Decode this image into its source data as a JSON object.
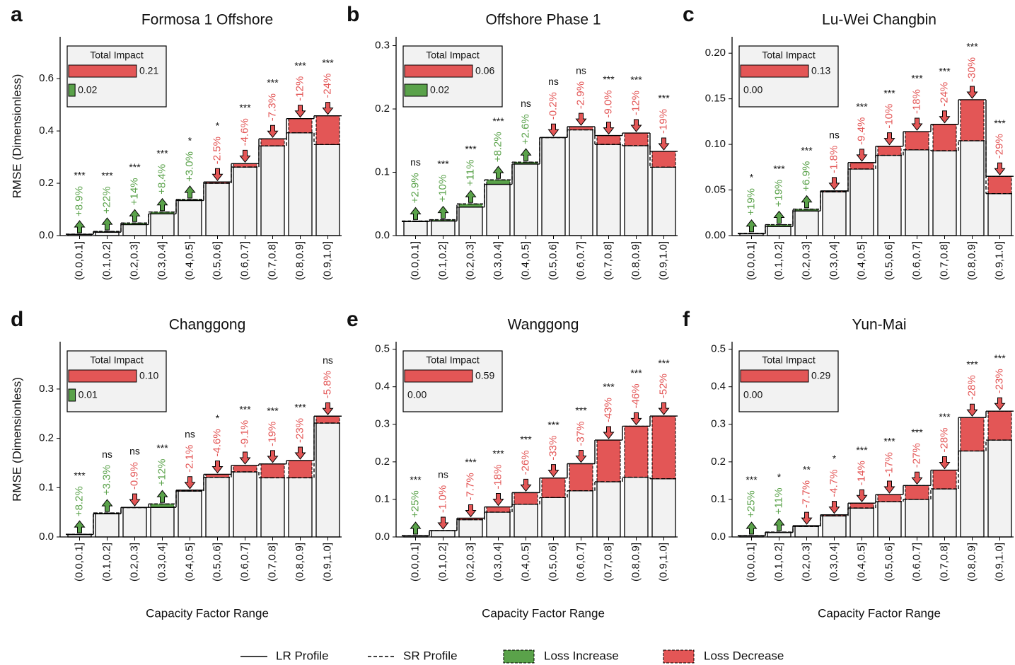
{
  "chart_data": [
    {
      "type": "step-bar",
      "panel_label": "a",
      "title": "Formosa 1 Offshore",
      "ylabel": "RMSE (Dimensionless)",
      "categories": [
        "(0.0,0.1]",
        "(0.1,0.2]",
        "(0.2,0.3]",
        "(0.3,0.4]",
        "(0.4,0.5]",
        "(0.5,0.6]",
        "(0.6,0.7]",
        "(0.7,0.8]",
        "(0.8,0.9]",
        "(0.9,1.0]"
      ],
      "series": [
        {
          "name": "LR Profile",
          "values": [
            0.005,
            0.013,
            0.042,
            0.083,
            0.134,
            0.205,
            0.275,
            0.37,
            0.447,
            0.458
          ]
        },
        {
          "name": "SR Profile",
          "values": [
            0.0055,
            0.016,
            0.048,
            0.09,
            0.138,
            0.2,
            0.262,
            0.343,
            0.393,
            0.348
          ]
        }
      ],
      "change_labels": [
        "+8.9%",
        "+22%",
        "+14%",
        "+8.4%",
        "+3.0%",
        "-2.5%",
        "-4.6%",
        "-7.3%",
        "-12%",
        "-24%"
      ],
      "significance": [
        "***",
        "***",
        "***",
        "***",
        "*",
        "*",
        "***",
        "***",
        "***",
        "***"
      ],
      "ylim": [
        0,
        0.76
      ],
      "yticks": [
        {
          "value": 0,
          "label": "0.0"
        },
        {
          "value": 0.2,
          "label": "0.2"
        },
        {
          "value": 0.4,
          "label": "0.4"
        },
        {
          "value": 0.6,
          "label": "0.6"
        }
      ],
      "inset": {
        "title": "Total Impact",
        "values": [
          0.21,
          0.02
        ],
        "value_labels": [
          "0.21",
          "0.02"
        ]
      }
    },
    {
      "type": "step-bar",
      "panel_label": "b",
      "title": "Offshore Phase 1",
      "categories": [
        "(0.0,0.1]",
        "(0.1,0.2]",
        "(0.2,0.3]",
        "(0.3,0.4]",
        "(0.4,0.5]",
        "(0.5,0.6]",
        "(0.6,0.7]",
        "(0.7,0.8]",
        "(0.8,0.9]",
        "(0.9,1.0]"
      ],
      "series": [
        {
          "name": "LR Profile",
          "values": [
            0.022,
            0.023,
            0.045,
            0.081,
            0.113,
            0.155,
            0.172,
            0.158,
            0.162,
            0.133
          ]
        },
        {
          "name": "SR Profile",
          "values": [
            0.023,
            0.025,
            0.05,
            0.088,
            0.116,
            0.1547,
            0.167,
            0.144,
            0.142,
            0.108
          ]
        }
      ],
      "change_labels": [
        "+2.9%",
        "+10%",
        "+11%",
        "+8.2%",
        "+2.6%",
        "-0.2%",
        "-2.9%",
        "-9.0%",
        "-12%",
        "-19%"
      ],
      "significance": [
        "ns",
        "***",
        "***",
        "***",
        "ns",
        "ns",
        "ns",
        "***",
        "***",
        "***"
      ],
      "ylim": [
        0,
        0.314
      ],
      "yticks": [
        {
          "value": 0,
          "label": "0.0"
        },
        {
          "value": 0.1,
          "label": "0.1"
        },
        {
          "value": 0.2,
          "label": "0.2"
        },
        {
          "value": 0.3,
          "label": "0.3"
        }
      ],
      "inset": {
        "title": "Total Impact",
        "values": [
          0.06,
          0.02
        ],
        "value_labels": [
          "0.06",
          "0.02"
        ]
      }
    },
    {
      "type": "step-bar",
      "panel_label": "c",
      "title": "Lu-Wei Changbin",
      "categories": [
        "(0.0,0.1]",
        "(0.1,0.2]",
        "(0.2,0.3]",
        "(0.3,0.4]",
        "(0.4,0.5]",
        "(0.5,0.6]",
        "(0.6,0.7]",
        "(0.7,0.8]",
        "(0.8,0.9]",
        "(0.9,1.0]"
      ],
      "series": [
        {
          "name": "LR Profile",
          "values": [
            0.002,
            0.01,
            0.027,
            0.049,
            0.08,
            0.098,
            0.114,
            0.122,
            0.149,
            0.065
          ]
        },
        {
          "name": "SR Profile",
          "values": [
            0.0025,
            0.012,
            0.029,
            0.048,
            0.073,
            0.088,
            0.094,
            0.093,
            0.104,
            0.046
          ]
        }
      ],
      "change_labels": [
        "+19%",
        "+19%",
        "+6.9%",
        "-1.8%",
        "-9.4%",
        "-10%",
        "-18%",
        "-24%",
        "-30%",
        "-29%"
      ],
      "significance": [
        "*",
        "***",
        "***",
        "ns",
        "***",
        "***",
        "***",
        "***",
        "***",
        "***"
      ],
      "ylim": [
        0,
        0.218
      ],
      "yticks": [
        {
          "value": 0,
          "label": "0.00"
        },
        {
          "value": 0.05,
          "label": "0.05"
        },
        {
          "value": 0.1,
          "label": "0.10"
        },
        {
          "value": 0.15,
          "label": "0.15"
        },
        {
          "value": 0.2,
          "label": "0.20"
        }
      ],
      "inset": {
        "title": "Total Impact",
        "values": [
          0.13,
          0
        ],
        "value_labels": [
          "0.13",
          "0.00"
        ]
      }
    },
    {
      "type": "step-bar",
      "panel_label": "d",
      "title": "Changgong",
      "ylabel": "RMSE (Dimensionless)",
      "xlabel": "Capacity Factor Range",
      "categories": [
        "(0.0,0.1]",
        "(0.1,0.2]",
        "(0.2,0.3]",
        "(0.3,0.4]",
        "(0.4,0.5]",
        "(0.5,0.6]",
        "(0.6,0.7]",
        "(0.7,0.8]",
        "(0.8,0.9]",
        "(0.9,1.0]"
      ],
      "series": [
        {
          "name": "LR Profile",
          "values": [
            0.005,
            0.047,
            0.06,
            0.06,
            0.095,
            0.127,
            0.145,
            0.148,
            0.155,
            0.245
          ]
        },
        {
          "name": "SR Profile",
          "values": [
            0.0055,
            0.0486,
            0.0595,
            0.067,
            0.093,
            0.121,
            0.132,
            0.12,
            0.12,
            0.231
          ]
        }
      ],
      "change_labels": [
        "+8.2%",
        "+3.3%",
        "-0.9%",
        "+12%",
        "-2.1%",
        "-4.6%",
        "-9.1%",
        "-19%",
        "-23%",
        "-5.8%"
      ],
      "significance": [
        "***",
        "ns",
        "ns",
        "***",
        "ns",
        "*",
        "***",
        "***",
        "***",
        "ns"
      ],
      "ylim": [
        0,
        0.396
      ],
      "yticks": [
        {
          "value": 0,
          "label": "0.0"
        },
        {
          "value": 0.1,
          "label": "0.1"
        },
        {
          "value": 0.2,
          "label": "0.2"
        },
        {
          "value": 0.3,
          "label": "0.3"
        }
      ],
      "inset": {
        "title": "Total Impact",
        "values": [
          0.1,
          0.01
        ],
        "value_labels": [
          "0.10",
          "0.01"
        ]
      }
    },
    {
      "type": "step-bar",
      "panel_label": "e",
      "title": "Wanggong",
      "xlabel": "Capacity Factor Range",
      "categories": [
        "(0.0,0.1]",
        "(0.1,0.2]",
        "(0.2,0.3]",
        "(0.3,0.4]",
        "(0.4,0.5]",
        "(0.5,0.6]",
        "(0.6,0.7]",
        "(0.7,0.8]",
        "(0.8,0.9]",
        "(0.9,1.0]"
      ],
      "series": [
        {
          "name": "LR Profile",
          "values": [
            0.003,
            0.017,
            0.05,
            0.08,
            0.118,
            0.157,
            0.195,
            0.258,
            0.295,
            0.322
          ]
        },
        {
          "name": "SR Profile",
          "values": [
            0.0037,
            0.0168,
            0.046,
            0.066,
            0.087,
            0.105,
            0.123,
            0.147,
            0.159,
            0.155
          ]
        }
      ],
      "change_labels": [
        "+25%",
        "-1.0%",
        "-7.7%",
        "-18%",
        "-26%",
        "-33%",
        "-37%",
        "-43%",
        "-46%",
        "-52%"
      ],
      "significance": [
        "***",
        "ns",
        "***",
        "***",
        "***",
        "***",
        "***",
        "***",
        "***",
        "***"
      ],
      "ylim": [
        0,
        0.52
      ],
      "yticks": [
        {
          "value": 0,
          "label": "0.0"
        },
        {
          "value": 0.1,
          "label": "0.1"
        },
        {
          "value": 0.2,
          "label": "0.2"
        },
        {
          "value": 0.3,
          "label": "0.3"
        },
        {
          "value": 0.4,
          "label": "0.4"
        },
        {
          "value": 0.5,
          "label": "0.5"
        }
      ],
      "inset": {
        "title": "Total Impact",
        "values": [
          0.59,
          0
        ],
        "value_labels": [
          "0.59",
          "0.00"
        ]
      }
    },
    {
      "type": "step-bar",
      "panel_label": "f",
      "title": "Yun-Mai",
      "xlabel": "Capacity Factor Range",
      "categories": [
        "(0.0,0.1]",
        "(0.1,0.2]",
        "(0.2,0.3]",
        "(0.3,0.4]",
        "(0.4,0.5]",
        "(0.5,0.6]",
        "(0.6,0.7]",
        "(0.7,0.8]",
        "(0.8,0.9]",
        "(0.9,1.0]"
      ],
      "series": [
        {
          "name": "LR Profile",
          "values": [
            0.003,
            0.012,
            0.03,
            0.059,
            0.09,
            0.113,
            0.137,
            0.178,
            0.318,
            0.335
          ]
        },
        {
          "name": "SR Profile",
          "values": [
            0.0037,
            0.013,
            0.028,
            0.056,
            0.077,
            0.094,
            0.1,
            0.128,
            0.229,
            0.258
          ]
        }
      ],
      "change_labels": [
        "+25%",
        "+11%",
        "-7.7%",
        "-4.7%",
        "-14%",
        "-17%",
        "-27%",
        "-28%",
        "-28%",
        "-23%"
      ],
      "significance": [
        "***",
        "*",
        "**",
        "*",
        "***",
        "***",
        "***",
        "***",
        "***",
        "***"
      ],
      "ylim": [
        0,
        0.52
      ],
      "yticks": [
        {
          "value": 0,
          "label": "0.0"
        },
        {
          "value": 0.1,
          "label": "0.1"
        },
        {
          "value": 0.2,
          "label": "0.2"
        },
        {
          "value": 0.3,
          "label": "0.3"
        },
        {
          "value": 0.4,
          "label": "0.4"
        },
        {
          "value": 0.5,
          "label": "0.5"
        }
      ],
      "inset": {
        "title": "Total Impact",
        "values": [
          0.29,
          0
        ],
        "value_labels": [
          "0.29",
          "0.00"
        ]
      }
    }
  ],
  "legend": [
    {
      "name": "LR Profile",
      "style": "solid",
      "color": "#000000"
    },
    {
      "name": "SR Profile",
      "style": "dashed",
      "color": "#000000"
    },
    {
      "name": "Loss Increase",
      "color": "#5aa24a"
    },
    {
      "name": "Loss Decrease",
      "color": "#e35656"
    }
  ]
}
